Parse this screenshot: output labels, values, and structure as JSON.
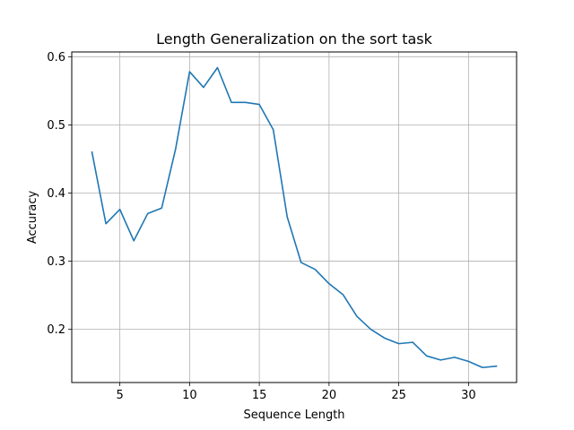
{
  "chart_data": {
    "type": "line",
    "title": "Length Generalization on the sort task",
    "xlabel": "Sequence Length",
    "ylabel": "Accuracy",
    "xlim": [
      1.55,
      33.45
    ],
    "ylim": [
      0.122,
      0.607
    ],
    "xticks": [
      5,
      10,
      15,
      20,
      25,
      30
    ],
    "yticks": [
      0.2,
      0.3,
      0.4,
      0.5,
      0.6
    ],
    "grid": true,
    "series": [
      {
        "color": "#1f77b4",
        "x": [
          3,
          4,
          5,
          6,
          7,
          8,
          9,
          10,
          11,
          12,
          13,
          14,
          15,
          16,
          17,
          18,
          19,
          20,
          21,
          22,
          23,
          24,
          25,
          26,
          27,
          28,
          29,
          30,
          31,
          32
        ],
        "y": [
          0.46,
          0.355,
          0.376,
          0.33,
          0.37,
          0.378,
          0.465,
          0.578,
          0.555,
          0.584,
          0.533,
          0.533,
          0.53,
          0.493,
          0.365,
          0.298,
          0.288,
          0.267,
          0.251,
          0.219,
          0.2,
          0.187,
          0.179,
          0.181,
          0.161,
          0.155,
          0.159,
          0.153,
          0.144,
          0.146
        ]
      }
    ]
  }
}
